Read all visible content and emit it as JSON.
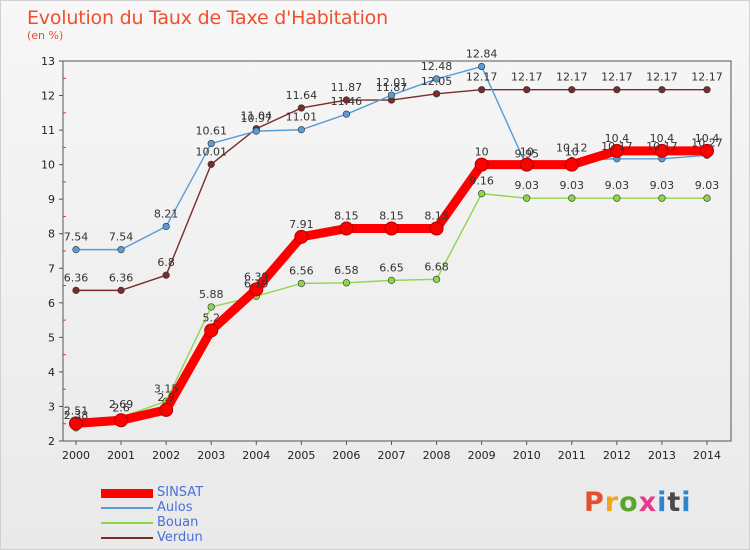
{
  "title": "Evolution du Taux de Taxe d'Habitation",
  "subtitle": "(en %)",
  "brand": "Proxiti",
  "chart_data": {
    "type": "line",
    "categories": [
      "2000",
      "2001",
      "2002",
      "2003",
      "2004",
      "2005",
      "2006",
      "2007",
      "2008",
      "2009",
      "2010",
      "2011",
      "2012",
      "2013",
      "2014"
    ],
    "ylim": [
      2,
      13
    ],
    "yticks": [
      2,
      3,
      4,
      5,
      6,
      7,
      8,
      9,
      10,
      11,
      12,
      13
    ],
    "grid": false,
    "legend_position": "bottom-left",
    "series": [
      {
        "name": "SINSAT",
        "color": "#ff0000",
        "values": [
          2.51,
          2.6,
          2.9,
          5.2,
          6.39,
          7.91,
          8.15,
          8.15,
          8.15,
          10,
          10,
          10,
          10.4,
          10.4,
          10.4
        ]
      },
      {
        "name": "Aulos",
        "color": "#5b9bd5",
        "values": [
          7.54,
          7.54,
          8.21,
          10.61,
          10.97,
          11.01,
          11.46,
          12.01,
          12.48,
          12.84,
          9.95,
          10.12,
          10.17,
          10.17,
          10.27
        ]
      },
      {
        "name": "Bouan",
        "color": "#8fd64a",
        "values": [
          2.38,
          2.69,
          3.15,
          5.88,
          6.19,
          6.56,
          6.58,
          6.65,
          6.68,
          9.16,
          9.03,
          9.03,
          9.03,
          9.03,
          9.03
        ]
      },
      {
        "name": "Verdun",
        "color": "#7a2b2b",
        "values": [
          6.36,
          6.36,
          6.8,
          10.01,
          11.04,
          11.64,
          11.87,
          11.87,
          12.05,
          12.17,
          12.17,
          12.17,
          12.17,
          12.17,
          12.17
        ]
      }
    ],
    "data_labels": [
      {
        "series": "SINSAT",
        "texts": [
          "2.51",
          "2.6",
          "2.9",
          "5.2",
          "6.39",
          "7.91",
          "8.15",
          "8.15",
          "8.15",
          "10",
          "10",
          "10",
          "10.4",
          "10.4",
          "10.4"
        ]
      },
      {
        "series": "Aulos",
        "texts": [
          "7.54",
          "7.54",
          "8.21",
          "10.61",
          "10.97",
          "11.01",
          "11.46",
          "12.01",
          "12.48",
          "12.84",
          "9.95",
          "10.12",
          "10.17",
          "10.17",
          "10.27"
        ]
      },
      {
        "series": "Bouan",
        "texts": [
          "2.38",
          "2.69",
          "3.15",
          "5.88",
          "6.19",
          "6.56",
          "6.58",
          "6.65",
          "6.68",
          "9.16",
          "9.03",
          "9.03",
          "9.03",
          "9.03",
          "9.03"
        ]
      },
      {
        "series": "Verdun",
        "texts": [
          "6.36",
          "6.36",
          "6.8",
          "10.01",
          "11.04",
          "11.64",
          "11.87",
          "11.87",
          "12.05",
          "12.17",
          "12.17",
          "12.17",
          "12.17",
          "12.17",
          "12.17"
        ]
      }
    ]
  }
}
